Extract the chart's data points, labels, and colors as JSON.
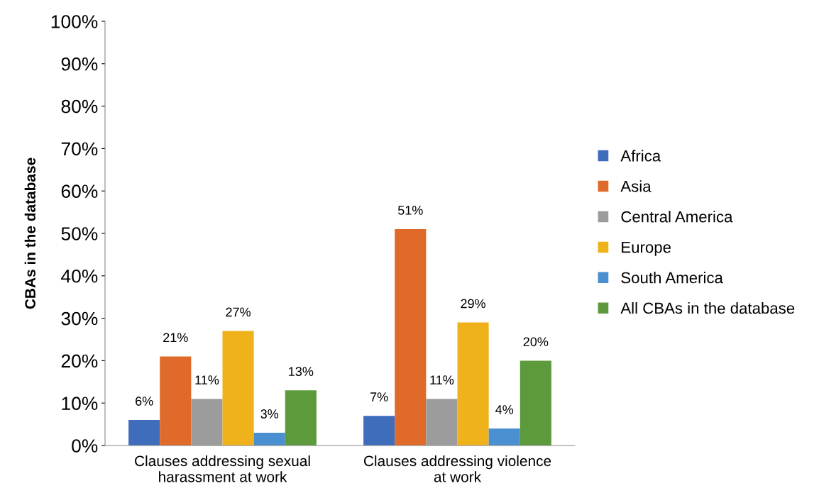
{
  "chart_data": {
    "type": "bar",
    "ylabel": "CBAs in the database",
    "categories": [
      "Clauses addressing sexual\nharassment at work",
      "Clauses addressing violence\nat work"
    ],
    "series": [
      {
        "name": "Africa",
        "color": "#3f6cbb",
        "values": [
          6,
          7
        ],
        "value_labels": [
          "6%",
          "7%"
        ]
      },
      {
        "name": "Asia",
        "color": "#e06a2a",
        "values": [
          21,
          51
        ],
        "value_labels": [
          "21%",
          "51%"
        ]
      },
      {
        "name": "Central America",
        "color": "#9c9c9c",
        "values": [
          11,
          11
        ],
        "value_labels": [
          "11%",
          "11%"
        ]
      },
      {
        "name": "Europe",
        "color": "#f0b21a",
        "values": [
          27,
          29
        ],
        "value_labels": [
          "27%",
          "29%"
        ]
      },
      {
        "name": "South America",
        "color": "#4a8fd0",
        "values": [
          3,
          4
        ],
        "value_labels": [
          "3%",
          "4%"
        ]
      },
      {
        "name": "All CBAs in the database",
        "color": "#5c9a3c",
        "values": [
          13,
          20
        ],
        "value_labels": [
          "13%",
          "20%"
        ]
      }
    ],
    "ylim": [
      0,
      100
    ],
    "yticks": [
      {
        "value": 0,
        "label": "0%"
      },
      {
        "value": 10,
        "label": "10%"
      },
      {
        "value": 20,
        "label": "20%"
      },
      {
        "value": 30,
        "label": "30%"
      },
      {
        "value": 40,
        "label": "40%"
      },
      {
        "value": 50,
        "label": "50%"
      },
      {
        "value": 60,
        "label": "60%"
      },
      {
        "value": 70,
        "label": "70%"
      },
      {
        "value": 80,
        "label": "80%"
      },
      {
        "value": 90,
        "label": "90%"
      },
      {
        "value": 100,
        "label": "100%"
      }
    ],
    "grid": false,
    "legend": "right"
  }
}
